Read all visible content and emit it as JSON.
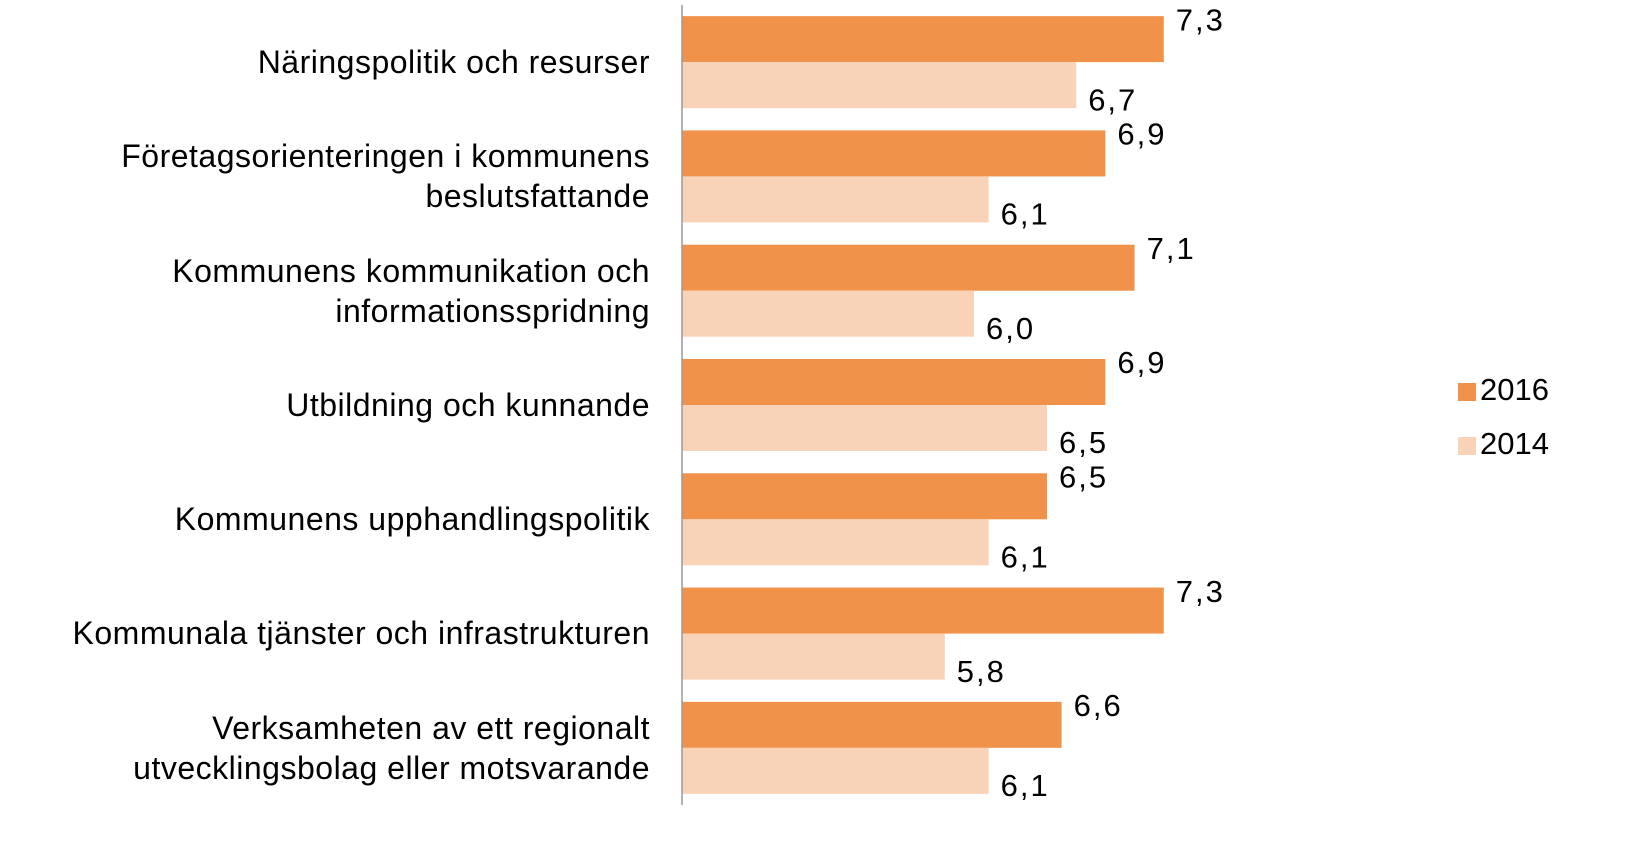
{
  "chart_data": {
    "type": "bar",
    "orientation": "horizontal",
    "categories": [
      "Näringspolitik och resurser",
      "Företagsorienteringen i kommunens beslutsfattande",
      "Kommunens kommunikation och informationsspridning",
      "Utbildning och kunnande",
      "Kommunens upphandlingspolitik",
      "Kommunala tjänster och infrastrukturen",
      "Verksamheten av ett regionalt utvecklingsbolag eller motsvarande"
    ],
    "series": [
      {
        "name": "2016",
        "color": "#f0924a",
        "values": [
          7.3,
          6.9,
          7.1,
          6.9,
          6.5,
          7.3,
          6.6
        ],
        "value_labels": [
          "7,3",
          "6,9",
          "7,1",
          "6,9",
          "6,5",
          "7,3",
          "6,6"
        ]
      },
      {
        "name": "2014",
        "color": "#f8d3b8",
        "values": [
          6.7,
          6.1,
          6.0,
          6.5,
          6.1,
          5.8,
          6.1
        ],
        "value_labels": [
          "6,7",
          "6,1",
          "6,0",
          "6,5",
          "6,1",
          "5,8",
          "6,1"
        ]
      }
    ],
    "xlim": [
      4,
      8
    ],
    "legend": "right"
  }
}
